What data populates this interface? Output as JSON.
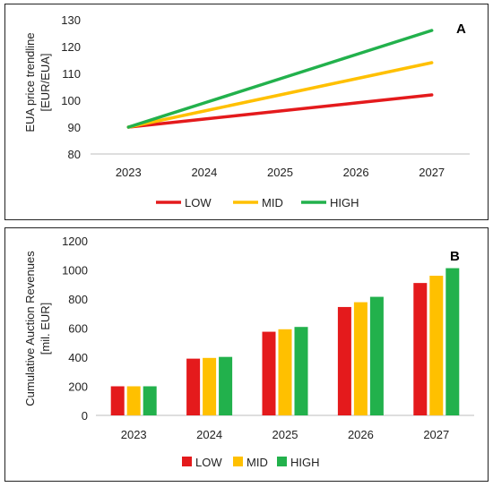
{
  "chart_data": [
    {
      "type": "line",
      "panel_label": "A",
      "ylabel": [
        "EUA price trendline",
        "[EUR/EUA]"
      ],
      "categories": [
        "2023",
        "2024",
        "2025",
        "2026",
        "2027"
      ],
      "ylim": [
        80,
        130
      ],
      "yticks": [
        "80",
        "90",
        "100",
        "110",
        "120",
        "130"
      ],
      "grid": false,
      "legend": "bottom",
      "series": [
        {
          "name": "LOW",
          "color": "#e41a1c",
          "values": [
            90,
            93,
            96,
            99,
            102
          ]
        },
        {
          "name": "MID",
          "color": "#ffc000",
          "values": [
            90,
            96,
            102,
            108,
            114
          ]
        },
        {
          "name": "HIGH",
          "color": "#22b14c",
          "values": [
            90,
            99,
            108,
            117,
            126
          ]
        }
      ]
    },
    {
      "type": "bar",
      "panel_label": "B",
      "ylabel": [
        "Cumulative Auction Revenues",
        "[mil. EUR]"
      ],
      "categories": [
        "2023",
        "2024",
        "2025",
        "2026",
        "2027"
      ],
      "ylim": [
        0,
        1200
      ],
      "yticks": [
        "0",
        "200",
        "400",
        "600",
        "800",
        "1000",
        "1200"
      ],
      "grid": false,
      "legend": "bottom",
      "series": [
        {
          "name": "LOW",
          "color": "#e41a1c",
          "values": [
            200,
            390,
            575,
            745,
            910
          ]
        },
        {
          "name": "MID",
          "color": "#ffc000",
          "values": [
            200,
            395,
            592,
            778,
            960
          ]
        },
        {
          "name": "HIGH",
          "color": "#22b14c",
          "values": [
            200,
            402,
            608,
            815,
            1012
          ]
        }
      ]
    }
  ]
}
